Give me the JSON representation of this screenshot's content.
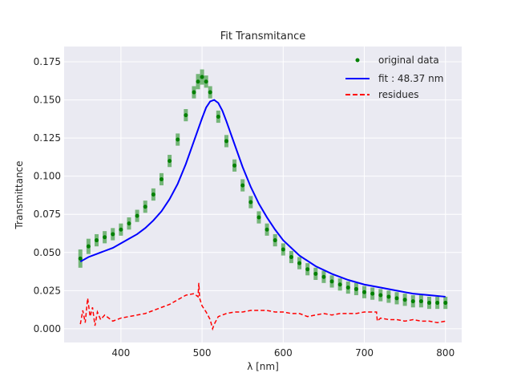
{
  "chart_data": {
    "type": "line",
    "title": "Fit Transmitance",
    "xlabel": "λ [nm]",
    "ylabel": "Transmittance",
    "xlim": [
      330,
      820
    ],
    "ylim": [
      -0.009,
      0.185
    ],
    "xticks": [
      400,
      500,
      600,
      700,
      800
    ],
    "xtick_labels": [
      "400",
      "500",
      "600",
      "700",
      "800"
    ],
    "yticks": [
      0.0,
      0.025,
      0.05,
      0.075,
      0.1,
      0.125,
      0.15,
      0.175
    ],
    "ytick_labels": [
      "0.000",
      "0.025",
      "0.050",
      "0.075",
      "0.100",
      "0.125",
      "0.150",
      "0.175"
    ],
    "grid": true,
    "legend_position": "top-right",
    "colors": {
      "background": "#eaeaf2",
      "grid": "#ffffff",
      "data": "#008000",
      "fit": "#0000ff",
      "residues": "#ff0000"
    },
    "series": [
      {
        "name": "original data",
        "style": "points-with-errorbars",
        "x": [
          350,
          360,
          370,
          380,
          390,
          400,
          410,
          420,
          430,
          440,
          450,
          460,
          470,
          480,
          490,
          495,
          500,
          505,
          510,
          520,
          530,
          540,
          550,
          560,
          570,
          580,
          590,
          600,
          610,
          620,
          630,
          640,
          650,
          660,
          670,
          680,
          690,
          700,
          710,
          720,
          730,
          740,
          750,
          760,
          770,
          780,
          790,
          800
        ],
        "y": [
          0.046,
          0.054,
          0.058,
          0.06,
          0.062,
          0.065,
          0.069,
          0.074,
          0.08,
          0.088,
          0.098,
          0.11,
          0.124,
          0.14,
          0.155,
          0.162,
          0.165,
          0.162,
          0.155,
          0.139,
          0.123,
          0.107,
          0.094,
          0.083,
          0.073,
          0.065,
          0.058,
          0.052,
          0.047,
          0.043,
          0.039,
          0.036,
          0.034,
          0.031,
          0.029,
          0.027,
          0.026,
          0.024,
          0.023,
          0.022,
          0.021,
          0.02,
          0.019,
          0.018,
          0.018,
          0.017,
          0.017,
          0.017
        ],
        "err": [
          0.006,
          0.005,
          0.004,
          0.004,
          0.004,
          0.004,
          0.004,
          0.004,
          0.004,
          0.004,
          0.004,
          0.004,
          0.004,
          0.004,
          0.004,
          0.005,
          0.005,
          0.004,
          0.004,
          0.004,
          0.004,
          0.004,
          0.004,
          0.004,
          0.004,
          0.004,
          0.004,
          0.004,
          0.004,
          0.004,
          0.004,
          0.004,
          0.004,
          0.004,
          0.004,
          0.004,
          0.004,
          0.004,
          0.004,
          0.004,
          0.004,
          0.004,
          0.004,
          0.004,
          0.004,
          0.004,
          0.004,
          0.004
        ]
      },
      {
        "name": "fit : 48.37 nm",
        "style": "solid-line",
        "x": [
          350,
          360,
          370,
          380,
          390,
          400,
          410,
          420,
          430,
          440,
          450,
          460,
          470,
          480,
          490,
          500,
          505,
          510,
          515,
          520,
          525,
          530,
          540,
          550,
          560,
          570,
          580,
          590,
          600,
          620,
          640,
          660,
          680,
          700,
          720,
          740,
          760,
          780,
          800
        ],
        "y": [
          0.044,
          0.047,
          0.049,
          0.051,
          0.053,
          0.056,
          0.059,
          0.062,
          0.066,
          0.071,
          0.077,
          0.085,
          0.095,
          0.108,
          0.123,
          0.138,
          0.145,
          0.149,
          0.15,
          0.148,
          0.143,
          0.136,
          0.121,
          0.106,
          0.093,
          0.082,
          0.073,
          0.065,
          0.058,
          0.048,
          0.041,
          0.036,
          0.032,
          0.029,
          0.027,
          0.025,
          0.023,
          0.022,
          0.021
        ]
      },
      {
        "name": "residues",
        "style": "dashed-line",
        "x": [
          350,
          353,
          356,
          359,
          362,
          365,
          368,
          371,
          375,
          380,
          390,
          400,
          410,
          420,
          430,
          440,
          450,
          460,
          470,
          480,
          490,
          495,
          496,
          497,
          500,
          505,
          510,
          513,
          515,
          520,
          530,
          540,
          550,
          560,
          570,
          580,
          590,
          600,
          610,
          620,
          630,
          640,
          650,
          660,
          670,
          680,
          690,
          700,
          710,
          715,
          716,
          720,
          730,
          740,
          750,
          760,
          770,
          780,
          790,
          800
        ],
        "y": [
          0.003,
          0.012,
          0.004,
          0.02,
          0.008,
          0.014,
          0.002,
          0.011,
          0.006,
          0.009,
          0.005,
          0.007,
          0.008,
          0.009,
          0.01,
          0.012,
          0.014,
          0.016,
          0.019,
          0.022,
          0.023,
          0.021,
          0.03,
          0.02,
          0.015,
          0.011,
          0.006,
          0.0,
          0.003,
          0.008,
          0.01,
          0.011,
          0.011,
          0.012,
          0.012,
          0.012,
          0.011,
          0.011,
          0.01,
          0.01,
          0.008,
          0.009,
          0.01,
          0.009,
          0.01,
          0.01,
          0.01,
          0.011,
          0.011,
          0.011,
          0.005,
          0.007,
          0.006,
          0.006,
          0.005,
          0.006,
          0.005,
          0.005,
          0.004,
          0.005
        ]
      }
    ]
  }
}
